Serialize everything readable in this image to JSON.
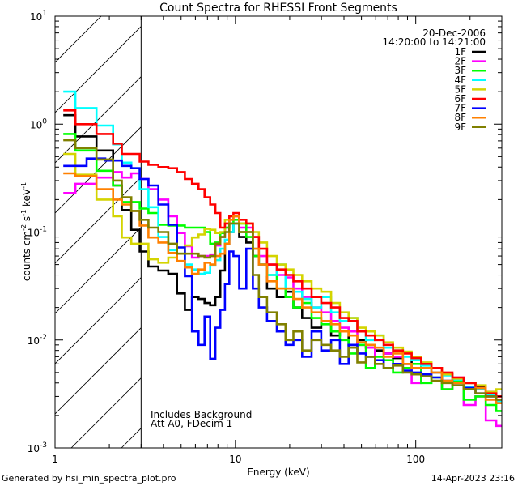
{
  "chart_data": {
    "type": "line",
    "title": "Count Spectra for RHESSI Front Segments",
    "xlabel": "Energy (keV)",
    "ylabel": "counts cm-2 s-1 keV-1",
    "ylabel_parts": [
      "counts cm",
      "-2",
      " s",
      "-1",
      " keV",
      "-1"
    ],
    "xscale": "log",
    "yscale": "log",
    "xlim": [
      1,
      300
    ],
    "ylim": [
      0.001,
      10
    ],
    "x_ticks": [
      {
        "value": 1,
        "label": "1"
      },
      {
        "value": 10,
        "label": "10"
      },
      {
        "value": 100,
        "label": "100"
      }
    ],
    "y_ticks": [
      {
        "value": 0.001,
        "base": "10",
        "exp": "-3"
      },
      {
        "value": 0.01,
        "base": "10",
        "exp": "-2"
      },
      {
        "value": 0.1,
        "base": "10",
        "exp": "-1"
      },
      {
        "value": 1,
        "base": "10",
        "exp": "0"
      },
      {
        "value": 10,
        "base": "10",
        "exp": "1"
      }
    ],
    "excluded_region_keV": [
      1,
      3
    ],
    "legend": {
      "placement": "top-right",
      "date": "20-Dec-2006",
      "time_range": "14:20:00 to 14:21:00"
    },
    "annotations": [
      "Includes Background",
      "Att A0, FDecim 1"
    ],
    "energy": [
      1.2,
      1.4,
      1.6,
      1.8,
      2.0,
      2.2,
      2.5,
      2.8,
      3.1,
      3.5,
      4.0,
      4.5,
      5.0,
      5.5,
      6.0,
      6.5,
      7.0,
      7.5,
      8.0,
      8.5,
      9.0,
      9.5,
      10,
      11,
      12,
      13,
      14,
      16,
      18,
      20,
      22,
      25,
      28,
      32,
      36,
      40,
      45,
      50,
      56,
      63,
      70,
      80,
      90,
      100,
      115,
      130,
      150,
      170,
      200,
      230,
      260,
      300
    ],
    "series": [
      {
        "name": "1F",
        "color": "#000000",
        "values": [
          1.21,
          0.77,
          0.77,
          0.57,
          0.57,
          0.27,
          0.16,
          0.105,
          0.066,
          0.048,
          0.044,
          0.041,
          0.027,
          0.019,
          0.025,
          0.024,
          0.022,
          0.021,
          0.025,
          0.044,
          0.078,
          0.1,
          0.12,
          0.09,
          0.08,
          0.06,
          0.05,
          0.03,
          0.025,
          0.028,
          0.02,
          0.016,
          0.013,
          0.015,
          0.011,
          0.012,
          0.009,
          0.01,
          0.0085,
          0.008,
          0.0075,
          0.0068,
          0.006,
          0.0065,
          0.0055,
          0.005,
          0.0048,
          0.0042,
          0.004,
          0.0037,
          0.0033,
          0.003
        ]
      },
      {
        "name": "2F",
        "color": "#ff00ff",
        "values": [
          0.23,
          0.28,
          0.28,
          0.32,
          0.32,
          0.36,
          0.32,
          0.35,
          0.31,
          0.25,
          0.2,
          0.14,
          0.098,
          0.074,
          0.058,
          0.06,
          0.06,
          0.062,
          0.075,
          0.09,
          0.11,
          0.13,
          0.14,
          0.11,
          0.11,
          0.09,
          0.06,
          0.05,
          0.04,
          0.038,
          0.03,
          0.025,
          0.02,
          0.018,
          0.015,
          0.013,
          0.012,
          0.009,
          0.0085,
          0.006,
          0.0075,
          0.007,
          0.006,
          0.004,
          0.0055,
          0.005,
          0.0035,
          0.0045,
          0.0025,
          0.003,
          0.0018,
          0.0016
        ]
      },
      {
        "name": "3F",
        "color": "#00ff00",
        "values": [
          0.81,
          0.57,
          0.57,
          0.37,
          0.37,
          0.27,
          0.19,
          0.19,
          0.165,
          0.15,
          0.117,
          0.115,
          0.115,
          0.11,
          0.11,
          0.11,
          0.1,
          0.078,
          0.08,
          0.098,
          0.11,
          0.12,
          0.13,
          0.12,
          0.09,
          0.06,
          0.05,
          0.04,
          0.03,
          0.025,
          0.02,
          0.022,
          0.016,
          0.014,
          0.012,
          0.01,
          0.0075,
          0.009,
          0.0055,
          0.007,
          0.0065,
          0.005,
          0.0055,
          0.006,
          0.004,
          0.0045,
          0.0035,
          0.0042,
          0.0028,
          0.003,
          0.0025,
          0.0022
        ]
      },
      {
        "name": "4F",
        "color": "#00ffff",
        "values": [
          2.0,
          1.41,
          1.41,
          0.97,
          0.97,
          0.65,
          0.44,
          0.39,
          0.25,
          0.17,
          0.09,
          0.068,
          0.063,
          0.05,
          0.045,
          0.041,
          0.042,
          0.049,
          0.055,
          0.07,
          0.085,
          0.1,
          0.12,
          0.1,
          0.1,
          0.07,
          0.05,
          0.04,
          0.05,
          0.03,
          0.028,
          0.024,
          0.02,
          0.025,
          0.018,
          0.015,
          0.016,
          0.012,
          0.01,
          0.011,
          0.0085,
          0.008,
          0.007,
          0.0065,
          0.0058,
          0.005,
          0.0047,
          0.0043,
          0.0037,
          0.0035,
          0.0031,
          0.0027
        ]
      },
      {
        "name": "5F",
        "color": "#d4d400",
        "values": [
          0.53,
          0.34,
          0.34,
          0.2,
          0.2,
          0.14,
          0.089,
          0.078,
          0.078,
          0.056,
          0.052,
          0.058,
          0.063,
          0.075,
          0.089,
          0.095,
          0.107,
          0.105,
          0.098,
          0.1,
          0.13,
          0.14,
          0.14,
          0.12,
          0.12,
          0.1,
          0.08,
          0.06,
          0.05,
          0.045,
          0.04,
          0.035,
          0.03,
          0.028,
          0.022,
          0.018,
          0.016,
          0.013,
          0.012,
          0.011,
          0.0095,
          0.0085,
          0.0078,
          0.007,
          0.0062,
          0.0055,
          0.0048,
          0.0044,
          0.004,
          0.0038,
          0.0033,
          0.0035
        ]
      },
      {
        "name": "6F",
        "color": "#ff0000",
        "values": [
          1.34,
          1.0,
          1.0,
          0.81,
          0.81,
          0.66,
          0.53,
          0.53,
          0.45,
          0.42,
          0.4,
          0.39,
          0.36,
          0.31,
          0.28,
          0.25,
          0.21,
          0.18,
          0.15,
          0.11,
          0.12,
          0.14,
          0.15,
          0.13,
          0.12,
          0.09,
          0.07,
          0.05,
          0.045,
          0.04,
          0.035,
          0.03,
          0.025,
          0.022,
          0.02,
          0.016,
          0.015,
          0.012,
          0.011,
          0.01,
          0.009,
          0.008,
          0.0075,
          0.0068,
          0.006,
          0.0055,
          0.005,
          0.0045,
          0.004,
          0.0036,
          0.0032,
          0.003
        ]
      },
      {
        "name": "7F",
        "color": "#0000ff",
        "values": [
          0.41,
          0.41,
          0.48,
          0.48,
          0.46,
          0.46,
          0.41,
          0.39,
          0.31,
          0.27,
          0.18,
          0.117,
          0.072,
          0.039,
          0.012,
          0.009,
          0.0165,
          0.0067,
          0.013,
          0.019,
          0.033,
          0.066,
          0.06,
          0.03,
          0.07,
          0.03,
          0.02,
          0.015,
          0.012,
          0.009,
          0.01,
          0.007,
          0.012,
          0.008,
          0.01,
          0.006,
          0.009,
          0.0075,
          0.007,
          0.0065,
          0.0055,
          0.006,
          0.0052,
          0.005,
          0.0048,
          0.0045,
          0.0042,
          0.004,
          0.0036,
          0.0032,
          0.003,
          0.0028
        ]
      },
      {
        "name": "8F",
        "color": "#ff8000",
        "values": [
          0.35,
          0.33,
          0.33,
          0.25,
          0.25,
          0.2,
          0.18,
          0.157,
          0.115,
          0.089,
          0.08,
          0.064,
          0.054,
          0.047,
          0.041,
          0.045,
          0.052,
          0.05,
          0.06,
          0.063,
          0.078,
          0.13,
          0.14,
          0.1,
          0.1,
          0.07,
          0.05,
          0.035,
          0.03,
          0.03,
          0.024,
          0.02,
          0.018,
          0.015,
          0.014,
          0.012,
          0.011,
          0.0095,
          0.009,
          0.0085,
          0.007,
          0.0075,
          0.006,
          0.0055,
          0.0055,
          0.005,
          0.0042,
          0.004,
          0.0035,
          0.0036,
          0.0028,
          0.0026
        ]
      },
      {
        "name": "9F",
        "color": "#808000",
        "values": [
          0.71,
          0.6,
          0.6,
          0.47,
          0.47,
          0.3,
          0.21,
          0.157,
          0.13,
          0.11,
          0.1,
          0.078,
          0.063,
          0.063,
          0.063,
          0.06,
          0.058,
          0.06,
          0.078,
          0.09,
          0.1,
          0.12,
          0.12,
          0.1,
          0.1,
          0.04,
          0.025,
          0.018,
          0.014,
          0.01,
          0.012,
          0.008,
          0.01,
          0.009,
          0.008,
          0.007,
          0.0085,
          0.0062,
          0.007,
          0.006,
          0.0055,
          0.0058,
          0.005,
          0.0048,
          0.0046,
          0.0042,
          0.004,
          0.0038,
          0.0035,
          0.0032,
          0.003,
          0.0028
        ]
      }
    ]
  },
  "footer": {
    "generated_by": "Generated by hsi_min_spectra_plot.pro",
    "timestamp": "14-Apr-2023 23:16"
  }
}
